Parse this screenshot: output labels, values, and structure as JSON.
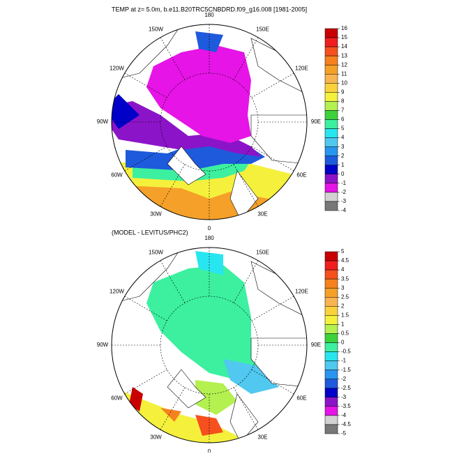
{
  "maps": [
    {
      "title": "TEMP at z=   5.0m, b.e11.B20TRC5CNBDRD.f09_g16.008 [1981-2005]",
      "lon_labels": [
        "180",
        "150E",
        "120E",
        "90E",
        "60E",
        "30E",
        "0",
        "30W",
        "60W",
        "90W",
        "120W",
        "150W"
      ],
      "colorbar": {
        "levels": [
          16,
          15,
          14,
          13,
          12,
          11,
          10,
          9,
          8,
          7,
          6,
          5,
          4,
          3,
          2,
          1,
          0,
          -1,
          -2,
          -3,
          -4
        ],
        "colors": [
          "#c80000",
          "#f01e1e",
          "#f5501e",
          "#f5821e",
          "#f5a028",
          "#f8b450",
          "#fad23c",
          "#f5f03c",
          "#b4f050",
          "#3cd23c",
          "#3cf0a0",
          "#28e6f0",
          "#50c8f0",
          "#2896f0",
          "#1e5adc",
          "#0000c8",
          "#8c14c8",
          "#e614e6",
          "#d2d2d2",
          "#787878"
        ]
      }
    },
    {
      "title": "(MODEL - LEVITUS/PHC2)",
      "lon_labels": [
        "180",
        "150E",
        "120E",
        "90E",
        "60E",
        "30E",
        "0",
        "30W",
        "60W",
        "90W",
        "120W",
        "150W"
      ],
      "colorbar": {
        "levels": [
          5,
          4.5,
          4,
          3.5,
          3,
          2.5,
          2,
          1.5,
          1,
          0.5,
          0,
          -0.5,
          -1,
          -1.5,
          -2,
          -2.5,
          -3,
          -3.5,
          -4,
          -4.5,
          -5
        ],
        "colors": [
          "#c80000",
          "#f01e1e",
          "#f5501e",
          "#f5821e",
          "#f5a028",
          "#f8b450",
          "#fad23c",
          "#f5f03c",
          "#b4f050",
          "#3cd23c",
          "#3cf0a0",
          "#28e6f0",
          "#50c8f0",
          "#2896f0",
          "#1e5adc",
          "#0000c8",
          "#8c14c8",
          "#e614e6",
          "#d2d2d2",
          "#787878"
        ]
      }
    }
  ]
}
